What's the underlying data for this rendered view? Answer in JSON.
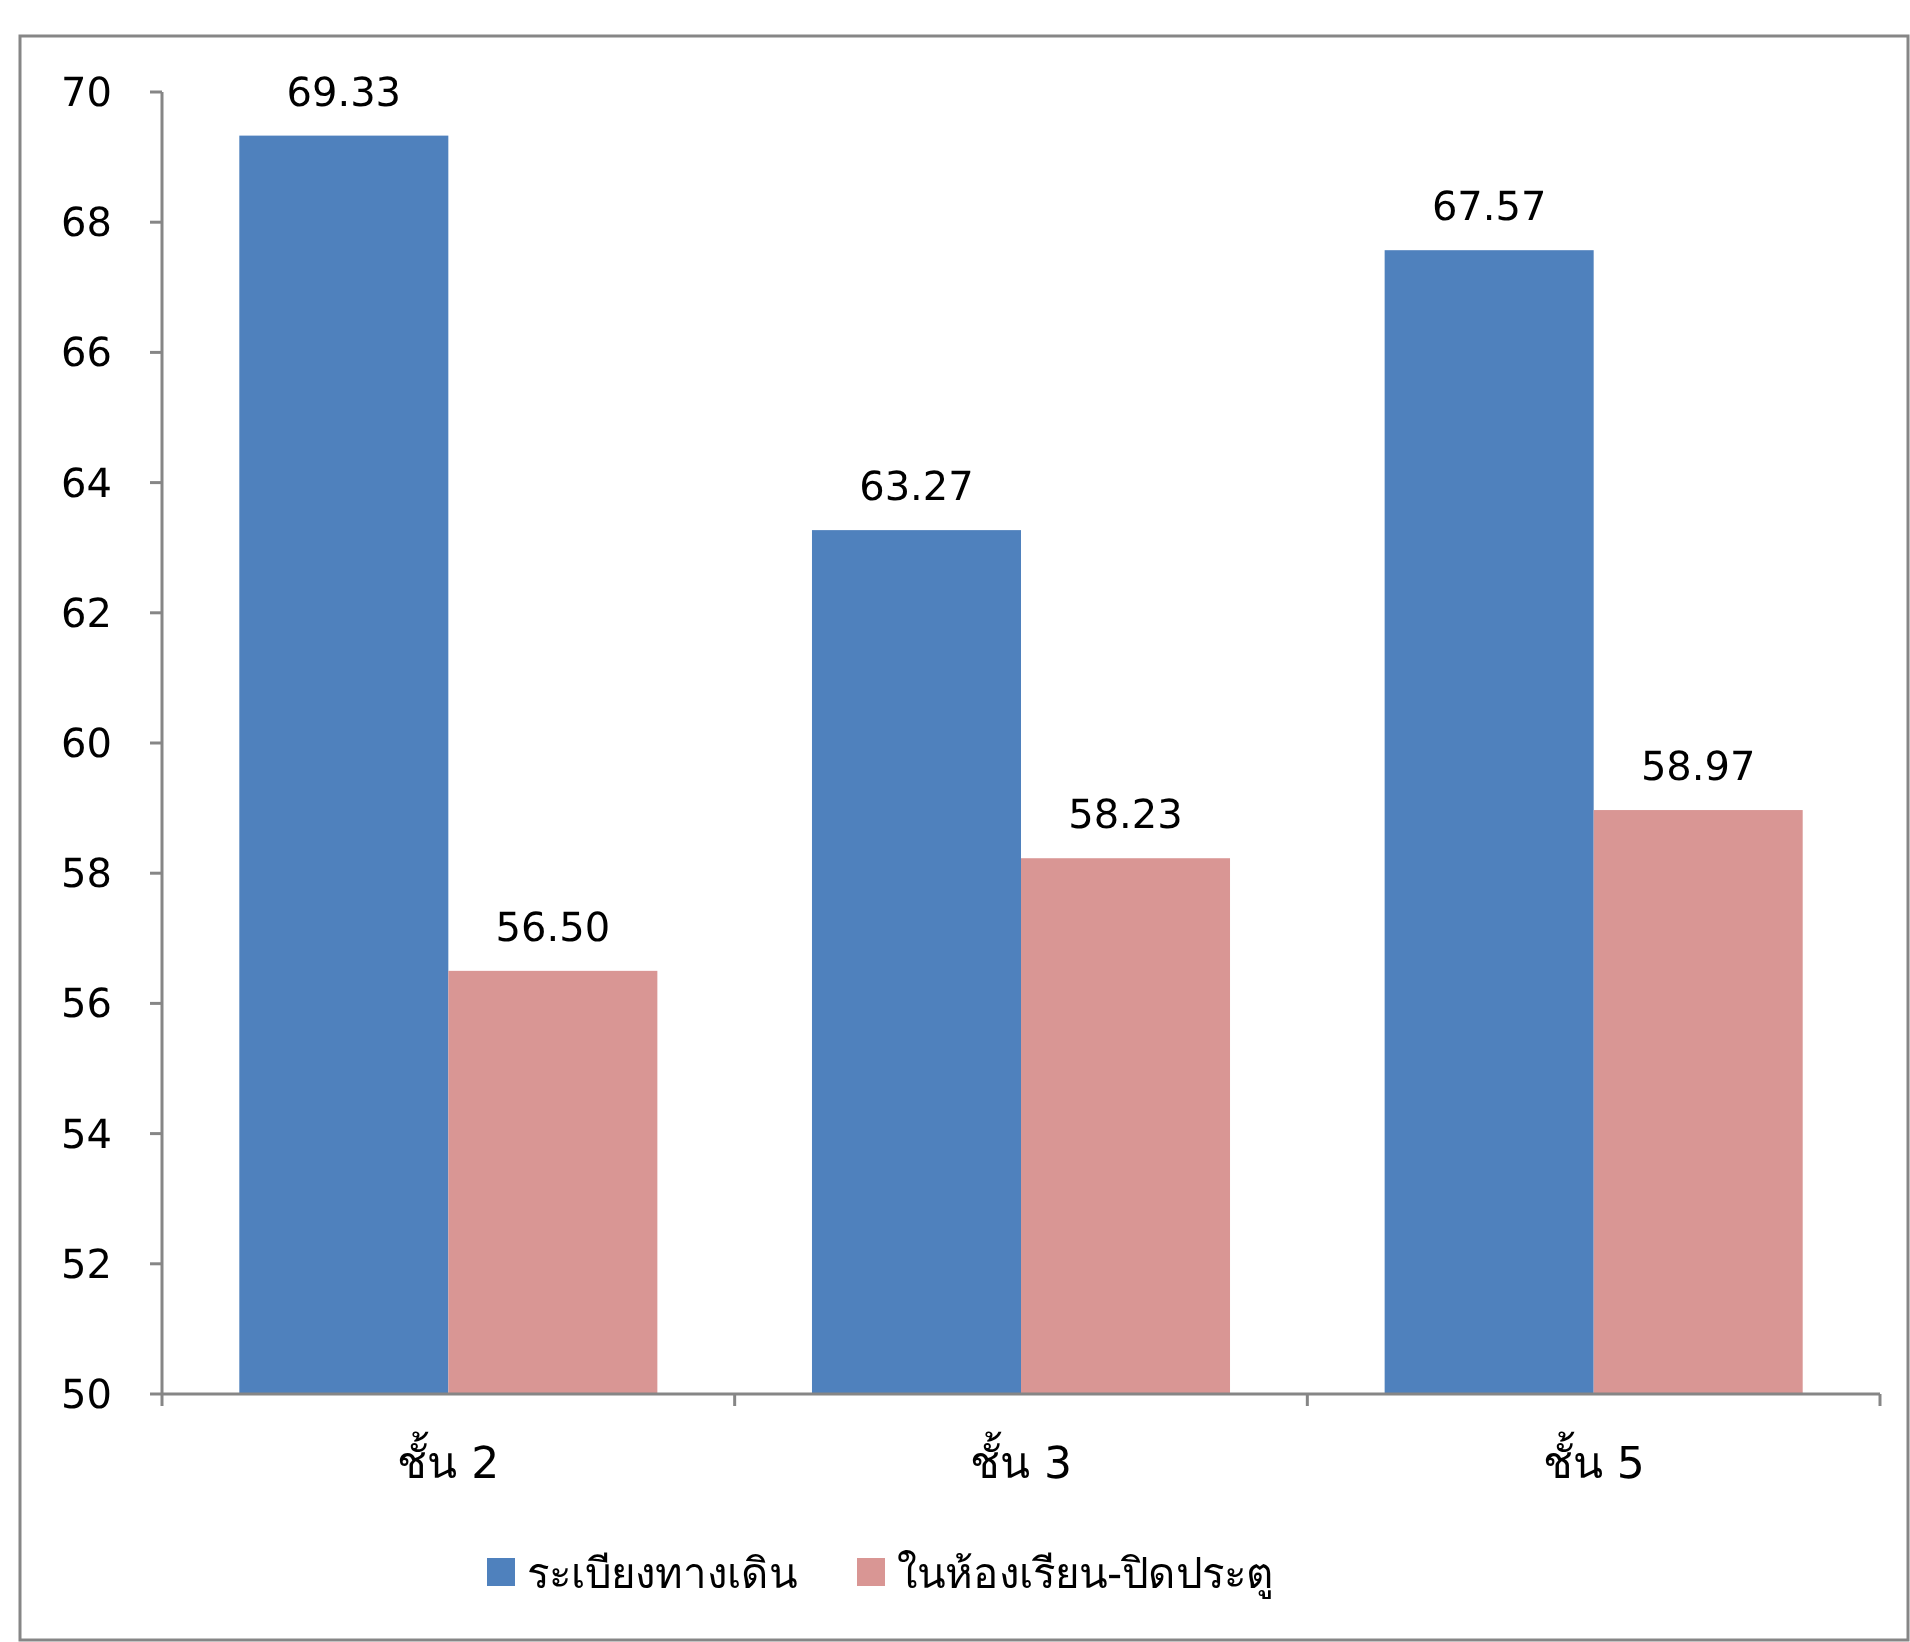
{
  "chart_data": {
    "type": "bar",
    "categories": [
      "ชั้น 2",
      "ชั้น 3",
      "ชั้น 5"
    ],
    "series": [
      {
        "name": "ระเบียงทางเดิน",
        "color": "#4f81bd",
        "values": [
          69.33,
          63.27,
          67.57
        ]
      },
      {
        "name": "ในห้องเรียน-ปิดประตู",
        "color": "#d99694",
        "values": [
          56.5,
          58.23,
          58.97
        ]
      }
    ],
    "ylim": [
      50,
      70
    ],
    "yticks": [
      50,
      52,
      54,
      56,
      58,
      60,
      62,
      64,
      66,
      68,
      70
    ],
    "value_labels": [
      [
        "69.33",
        "63.27",
        "67.57"
      ],
      [
        "56.50",
        "58.23",
        "58.97"
      ]
    ],
    "legend": "bottom",
    "grid": false
  }
}
